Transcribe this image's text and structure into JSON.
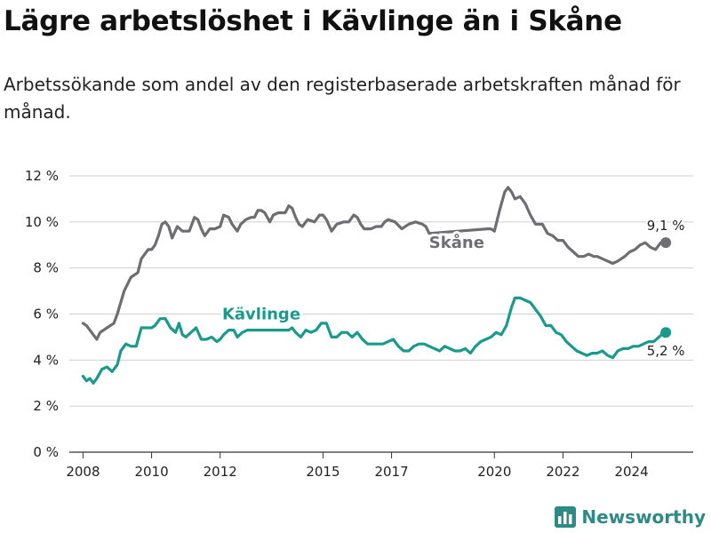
{
  "title": "Lägre arbetslöshet i Kävlinge än i Skåne",
  "subtitle": "Arbetssökande som andel av den registerbaserade arbetskraften månad för månad.",
  "brand": "Newsworthy",
  "chart_data": {
    "type": "line",
    "ylim": [
      0,
      12
    ],
    "xlim": [
      2007.6,
      2025.8
    ],
    "yticks": [
      0,
      2,
      4,
      6,
      8,
      10,
      12
    ],
    "ytick_labels": [
      "0 %",
      "2 %",
      "4 %",
      "6 %",
      "8 %",
      "10 %",
      "12 %"
    ],
    "xticks": [
      2008,
      2010,
      2012,
      2015,
      2017,
      2020,
      2022,
      2024
    ],
    "xtick_labels": [
      "2008",
      "2010",
      "2012",
      "2015",
      "2017",
      "2020",
      "2022",
      "2024"
    ],
    "grid": "horizontal",
    "series": [
      {
        "name": "Skåne",
        "color": "#6e6e72",
        "end_label": "9,1 %",
        "points": [
          [
            2008.0,
            5.6
          ],
          [
            2008.1,
            5.5
          ],
          [
            2008.2,
            5.3
          ],
          [
            2008.3,
            5.1
          ],
          [
            2008.4,
            4.9
          ],
          [
            2008.5,
            5.2
          ],
          [
            2008.7,
            5.4
          ],
          [
            2008.9,
            5.6
          ],
          [
            2009.0,
            6.0
          ],
          [
            2009.2,
            7.0
          ],
          [
            2009.4,
            7.6
          ],
          [
            2009.6,
            7.8
          ],
          [
            2009.7,
            8.4
          ],
          [
            2009.9,
            8.8
          ],
          [
            2010.0,
            8.8
          ],
          [
            2010.1,
            9.0
          ],
          [
            2010.2,
            9.4
          ],
          [
            2010.3,
            9.9
          ],
          [
            2010.4,
            10.0
          ],
          [
            2010.5,
            9.8
          ],
          [
            2010.6,
            9.3
          ],
          [
            2010.75,
            9.8
          ],
          [
            2010.9,
            9.6
          ],
          [
            2011.1,
            9.6
          ],
          [
            2011.25,
            10.2
          ],
          [
            2011.35,
            10.1
          ],
          [
            2011.45,
            9.7
          ],
          [
            2011.55,
            9.4
          ],
          [
            2011.7,
            9.7
          ],
          [
            2011.85,
            9.7
          ],
          [
            2012.0,
            9.8
          ],
          [
            2012.1,
            10.3
          ],
          [
            2012.25,
            10.2
          ],
          [
            2012.35,
            9.9
          ],
          [
            2012.5,
            9.6
          ],
          [
            2012.6,
            9.9
          ],
          [
            2012.75,
            10.1
          ],
          [
            2012.9,
            10.2
          ],
          [
            2013.0,
            10.2
          ],
          [
            2013.1,
            10.5
          ],
          [
            2013.2,
            10.5
          ],
          [
            2013.3,
            10.4
          ],
          [
            2013.45,
            10.0
          ],
          [
            2013.55,
            10.3
          ],
          [
            2013.7,
            10.4
          ],
          [
            2013.9,
            10.4
          ],
          [
            2014.0,
            10.7
          ],
          [
            2014.1,
            10.6
          ],
          [
            2014.2,
            10.2
          ],
          [
            2014.3,
            9.9
          ],
          [
            2014.4,
            9.8
          ],
          [
            2014.55,
            10.1
          ],
          [
            2014.75,
            10.0
          ],
          [
            2014.9,
            10.3
          ],
          [
            2015.0,
            10.3
          ],
          [
            2015.1,
            10.1
          ],
          [
            2015.25,
            9.6
          ],
          [
            2015.4,
            9.9
          ],
          [
            2015.6,
            10.0
          ],
          [
            2015.75,
            10.0
          ],
          [
            2015.9,
            10.3
          ],
          [
            2016.0,
            10.2
          ],
          [
            2016.1,
            9.9
          ],
          [
            2016.2,
            9.7
          ],
          [
            2016.4,
            9.7
          ],
          [
            2016.55,
            9.8
          ],
          [
            2016.7,
            9.8
          ],
          [
            2016.8,
            10.0
          ],
          [
            2016.9,
            10.1
          ],
          [
            2017.1,
            10.0
          ],
          [
            2017.3,
            9.7
          ],
          [
            2017.5,
            9.9
          ],
          [
            2017.7,
            10.0
          ],
          [
            2017.9,
            9.9
          ],
          [
            2018.0,
            9.8
          ],
          [
            2018.1,
            9.5
          ],
          [
            2019.8,
            9.7
          ],
          [
            2019.9,
            9.7
          ],
          [
            2020.0,
            9.6
          ],
          [
            2020.15,
            10.5
          ],
          [
            2020.3,
            11.3
          ],
          [
            2020.4,
            11.5
          ],
          [
            2020.5,
            11.3
          ],
          [
            2020.6,
            11.0
          ],
          [
            2020.75,
            11.1
          ],
          [
            2020.9,
            10.8
          ],
          [
            2021.05,
            10.3
          ],
          [
            2021.2,
            9.9
          ],
          [
            2021.4,
            9.9
          ],
          [
            2021.55,
            9.5
          ],
          [
            2021.7,
            9.4
          ],
          [
            2021.85,
            9.2
          ],
          [
            2022.0,
            9.2
          ],
          [
            2022.15,
            8.9
          ],
          [
            2022.3,
            8.7
          ],
          [
            2022.45,
            8.5
          ],
          [
            2022.6,
            8.5
          ],
          [
            2022.75,
            8.6
          ],
          [
            2022.9,
            8.5
          ],
          [
            2023.0,
            8.5
          ],
          [
            2023.15,
            8.4
          ],
          [
            2023.3,
            8.3
          ],
          [
            2023.45,
            8.2
          ],
          [
            2023.6,
            8.3
          ],
          [
            2023.8,
            8.5
          ],
          [
            2023.95,
            8.7
          ],
          [
            2024.1,
            8.8
          ],
          [
            2024.25,
            9.0
          ],
          [
            2024.4,
            9.1
          ],
          [
            2024.55,
            8.9
          ],
          [
            2024.7,
            8.8
          ],
          [
            2024.85,
            9.1
          ],
          [
            2025.0,
            9.1
          ]
        ]
      },
      {
        "name": "Kävlinge",
        "color": "#1a9a8c",
        "end_label": "5,2 %",
        "points": [
          [
            2008.0,
            3.3
          ],
          [
            2008.1,
            3.1
          ],
          [
            2008.2,
            3.2
          ],
          [
            2008.3,
            3.0
          ],
          [
            2008.4,
            3.2
          ],
          [
            2008.55,
            3.6
          ],
          [
            2008.7,
            3.7
          ],
          [
            2008.85,
            3.5
          ],
          [
            2009.0,
            3.8
          ],
          [
            2009.1,
            4.4
          ],
          [
            2009.25,
            4.7
          ],
          [
            2009.4,
            4.6
          ],
          [
            2009.55,
            4.6
          ],
          [
            2009.7,
            5.4
          ],
          [
            2009.85,
            5.4
          ],
          [
            2010.0,
            5.4
          ],
          [
            2010.1,
            5.5
          ],
          [
            2010.25,
            5.8
          ],
          [
            2010.4,
            5.8
          ],
          [
            2010.55,
            5.4
          ],
          [
            2010.7,
            5.2
          ],
          [
            2010.8,
            5.6
          ],
          [
            2010.9,
            5.1
          ],
          [
            2011.0,
            5.0
          ],
          [
            2011.15,
            5.2
          ],
          [
            2011.3,
            5.4
          ],
          [
            2011.45,
            4.9
          ],
          [
            2011.6,
            4.9
          ],
          [
            2011.75,
            5.0
          ],
          [
            2011.9,
            4.8
          ],
          [
            2012.0,
            4.9
          ],
          [
            2012.1,
            5.1
          ],
          [
            2012.25,
            5.3
          ],
          [
            2012.4,
            5.3
          ],
          [
            2012.5,
            5.0
          ],
          [
            2012.65,
            5.2
          ],
          [
            2012.8,
            5.3
          ],
          [
            2012.9,
            5.3
          ],
          [
            2013.0,
            5.3
          ],
          [
            2014.0,
            5.3
          ],
          [
            2014.1,
            5.4
          ],
          [
            2014.2,
            5.2
          ],
          [
            2014.35,
            5.0
          ],
          [
            2014.5,
            5.3
          ],
          [
            2014.65,
            5.2
          ],
          [
            2014.8,
            5.3
          ],
          [
            2014.95,
            5.6
          ],
          [
            2015.1,
            5.6
          ],
          [
            2015.25,
            5.0
          ],
          [
            2015.4,
            5.0
          ],
          [
            2015.55,
            5.2
          ],
          [
            2015.7,
            5.2
          ],
          [
            2015.85,
            5.0
          ],
          [
            2016.0,
            5.2
          ],
          [
            2016.15,
            4.9
          ],
          [
            2016.3,
            4.7
          ],
          [
            2016.45,
            4.7
          ],
          [
            2016.6,
            4.7
          ],
          [
            2016.75,
            4.7
          ],
          [
            2016.9,
            4.8
          ],
          [
            2017.05,
            4.9
          ],
          [
            2017.2,
            4.6
          ],
          [
            2017.35,
            4.4
          ],
          [
            2017.5,
            4.4
          ],
          [
            2017.65,
            4.6
          ],
          [
            2017.8,
            4.7
          ],
          [
            2017.95,
            4.7
          ],
          [
            2018.1,
            4.6
          ],
          [
            2018.25,
            4.5
          ],
          [
            2018.4,
            4.4
          ],
          [
            2018.55,
            4.6
          ],
          [
            2018.7,
            4.5
          ],
          [
            2018.85,
            4.4
          ],
          [
            2019.0,
            4.4
          ],
          [
            2019.15,
            4.5
          ],
          [
            2019.3,
            4.3
          ],
          [
            2019.45,
            4.6
          ],
          [
            2019.6,
            4.8
          ],
          [
            2019.75,
            4.9
          ],
          [
            2019.9,
            5.0
          ],
          [
            2020.05,
            5.2
          ],
          [
            2020.2,
            5.1
          ],
          [
            2020.35,
            5.5
          ],
          [
            2020.5,
            6.3
          ],
          [
            2020.6,
            6.7
          ],
          [
            2020.75,
            6.7
          ],
          [
            2020.9,
            6.6
          ],
          [
            2021.05,
            6.5
          ],
          [
            2021.2,
            6.2
          ],
          [
            2021.35,
            5.9
          ],
          [
            2021.5,
            5.5
          ],
          [
            2021.65,
            5.5
          ],
          [
            2021.8,
            5.2
          ],
          [
            2021.95,
            5.1
          ],
          [
            2022.1,
            4.8
          ],
          [
            2022.25,
            4.6
          ],
          [
            2022.4,
            4.4
          ],
          [
            2022.55,
            4.3
          ],
          [
            2022.7,
            4.2
          ],
          [
            2022.85,
            4.3
          ],
          [
            2023.0,
            4.3
          ],
          [
            2023.15,
            4.4
          ],
          [
            2023.3,
            4.2
          ],
          [
            2023.45,
            4.1
          ],
          [
            2023.6,
            4.4
          ],
          [
            2023.75,
            4.5
          ],
          [
            2023.9,
            4.5
          ],
          [
            2024.05,
            4.6
          ],
          [
            2024.2,
            4.6
          ],
          [
            2024.35,
            4.7
          ],
          [
            2024.5,
            4.8
          ],
          [
            2024.65,
            4.8
          ],
          [
            2024.8,
            5.0
          ],
          [
            2024.95,
            5.2
          ],
          [
            2025.0,
            5.2
          ]
        ]
      }
    ]
  }
}
